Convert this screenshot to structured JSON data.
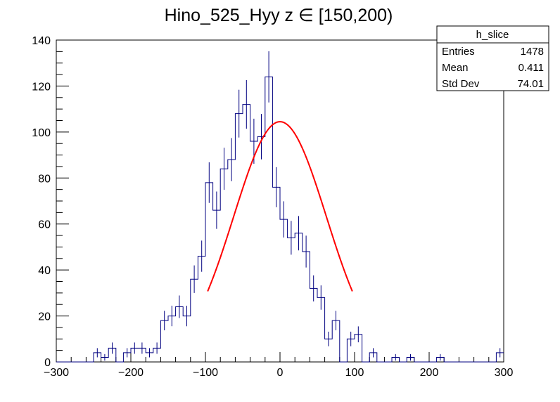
{
  "chart_data": {
    "type": "histogram",
    "title": "Hino_525_Hyy z  ∈ [150,200)",
    "xlabel": "",
    "ylabel": "",
    "xlim": [
      -300,
      300
    ],
    "ylim": [
      0,
      140
    ],
    "bin_width": 10,
    "x_ticks": [
      -300,
      -200,
      -100,
      0,
      100,
      200,
      300
    ],
    "x_tick_labels": [
      "−300",
      "−200",
      "−100",
      "0",
      "100",
      "200",
      "300"
    ],
    "y_ticks": [
      0,
      20,
      40,
      60,
      80,
      100,
      120,
      140
    ],
    "y_tick_labels": [
      "0",
      "20",
      "40",
      "60",
      "80",
      "100",
      "120",
      "140"
    ],
    "grid": false,
    "colors": {
      "histogram": "#000080",
      "fit": "#ff0000",
      "axes": "#000000"
    },
    "series": [
      {
        "kind": "histogram",
        "bin_edges_start": -300,
        "counts": [
          0,
          0,
          0,
          0,
          0,
          4,
          2,
          6,
          0,
          4,
          6,
          6,
          4,
          6,
          18,
          20,
          24,
          20,
          36,
          46,
          78,
          66,
          84,
          88,
          108,
          112,
          96,
          98,
          124,
          76,
          62,
          54,
          56,
          48,
          32,
          28,
          10,
          18,
          0,
          10,
          12,
          0,
          4,
          0,
          0,
          2,
          0,
          2,
          0,
          0,
          0,
          2,
          0,
          0,
          0,
          0,
          0,
          0,
          0,
          4
        ]
      },
      {
        "kind": "fit",
        "function": "gaus",
        "constant": 104.5,
        "mean": 0,
        "sigma": 62,
        "x_range": [
          -97,
          97
        ]
      }
    ],
    "stats_box": {
      "name": "h_slice",
      "rows": [
        {
          "label": "Entries",
          "value": "1478"
        },
        {
          "label": "Mean",
          "value": "0.411"
        },
        {
          "label": "Std Dev",
          "value": "74.01"
        }
      ]
    }
  }
}
